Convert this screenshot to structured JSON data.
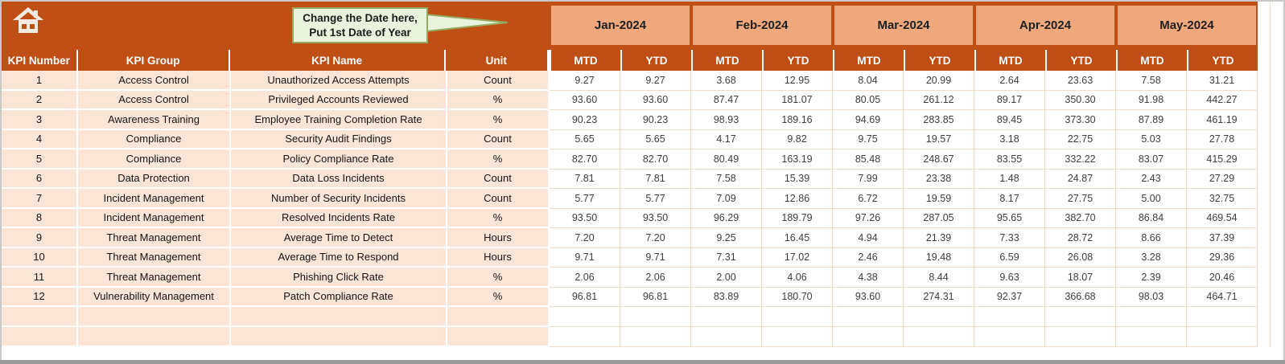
{
  "callout": {
    "line1": "Change the Date here,",
    "line2": "Put 1st Date of Year"
  },
  "icons": {
    "home": "home-icon",
    "callout_pointer": "callout-pointer-icon"
  },
  "columns": {
    "kpi_number": "KPI Number",
    "kpi_group": "KPI Group",
    "kpi_name": "KPI Name",
    "unit": "Unit",
    "mtd": "MTD",
    "ytd": "YTD"
  },
  "months": [
    "Jan-2024",
    "Feb-2024",
    "Mar-2024",
    "Apr-2024",
    "May-2024"
  ],
  "colors": {
    "header_dark_orange": "#bf4f15",
    "month_salmon": "#efa77c",
    "row_peach": "#fbe5d6",
    "callout_green": "#e9f2dc",
    "callout_border": "#93aa5e",
    "header_text": "#ffffff"
  },
  "empty_rows": 2,
  "rows": [
    {
      "number": "1",
      "group": "Access Control",
      "name": "Unauthorized Access Attempts",
      "unit": "Count",
      "values": [
        "9.27",
        "9.27",
        "3.68",
        "12.95",
        "8.04",
        "20.99",
        "2.64",
        "23.63",
        "7.58",
        "31.21"
      ]
    },
    {
      "number": "2",
      "group": "Access Control",
      "name": "Privileged Accounts Reviewed",
      "unit": "%",
      "values": [
        "93.60",
        "93.60",
        "87.47",
        "181.07",
        "80.05",
        "261.12",
        "89.17",
        "350.30",
        "91.98",
        "442.27"
      ]
    },
    {
      "number": "3",
      "group": "Awareness Training",
      "name": "Employee Training Completion Rate",
      "unit": "%",
      "values": [
        "90.23",
        "90.23",
        "98.93",
        "189.16",
        "94.69",
        "283.85",
        "89.45",
        "373.30",
        "87.89",
        "461.19"
      ]
    },
    {
      "number": "4",
      "group": "Compliance",
      "name": "Security Audit Findings",
      "unit": "Count",
      "values": [
        "5.65",
        "5.65",
        "4.17",
        "9.82",
        "9.75",
        "19.57",
        "3.18",
        "22.75",
        "5.03",
        "27.78"
      ]
    },
    {
      "number": "5",
      "group": "Compliance",
      "name": "Policy Compliance Rate",
      "unit": "%",
      "values": [
        "82.70",
        "82.70",
        "80.49",
        "163.19",
        "85.48",
        "248.67",
        "83.55",
        "332.22",
        "83.07",
        "415.29"
      ]
    },
    {
      "number": "6",
      "group": "Data Protection",
      "name": "Data Loss Incidents",
      "unit": "Count",
      "values": [
        "7.81",
        "7.81",
        "7.58",
        "15.39",
        "7.99",
        "23.38",
        "1.48",
        "24.87",
        "2.43",
        "27.29"
      ]
    },
    {
      "number": "7",
      "group": "Incident Management",
      "name": "Number of Security Incidents",
      "unit": "Count",
      "values": [
        "5.77",
        "5.77",
        "7.09",
        "12.86",
        "6.72",
        "19.59",
        "8.17",
        "27.75",
        "5.00",
        "32.75"
      ]
    },
    {
      "number": "8",
      "group": "Incident Management",
      "name": "Resolved Incidents Rate",
      "unit": "%",
      "values": [
        "93.50",
        "93.50",
        "96.29",
        "189.79",
        "97.26",
        "287.05",
        "95.65",
        "382.70",
        "86.84",
        "469.54"
      ]
    },
    {
      "number": "9",
      "group": "Threat Management",
      "name": "Average Time to Detect",
      "unit": "Hours",
      "values": [
        "7.20",
        "7.20",
        "9.25",
        "16.45",
        "4.94",
        "21.39",
        "7.33",
        "28.72",
        "8.66",
        "37.39"
      ]
    },
    {
      "number": "10",
      "group": "Threat Management",
      "name": "Average Time to Respond",
      "unit": "Hours",
      "values": [
        "9.71",
        "9.71",
        "7.31",
        "17.02",
        "2.46",
        "19.48",
        "6.59",
        "26.08",
        "3.28",
        "29.36"
      ]
    },
    {
      "number": "11",
      "group": "Threat Management",
      "name": "Phishing Click Rate",
      "unit": "%",
      "values": [
        "2.06",
        "2.06",
        "2.00",
        "4.06",
        "4.38",
        "8.44",
        "9.63",
        "18.07",
        "2.39",
        "20.46"
      ]
    },
    {
      "number": "12",
      "group": "Vulnerability Management",
      "name": "Patch Compliance Rate",
      "unit": "%",
      "values": [
        "96.81",
        "96.81",
        "83.89",
        "180.70",
        "93.60",
        "274.31",
        "92.37",
        "366.68",
        "98.03",
        "464.71"
      ]
    }
  ]
}
